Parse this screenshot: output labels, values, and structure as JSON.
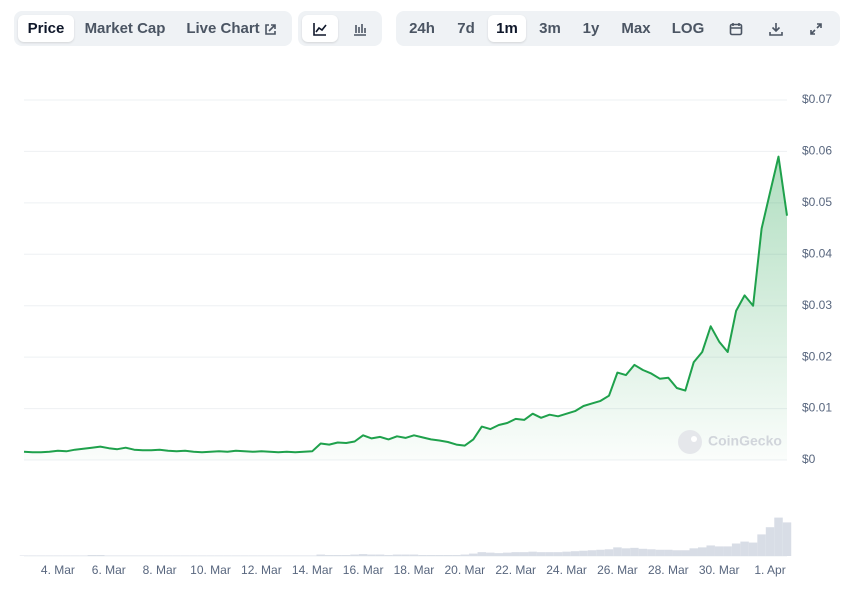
{
  "toolbar": {
    "views": [
      "Price",
      "Market Cap",
      "Live Chart"
    ],
    "ranges": [
      "24h",
      "7d",
      "1m",
      "3m",
      "1y",
      "Max",
      "LOG"
    ]
  },
  "watermark": "CoinGecko",
  "chart_data": {
    "type": "line",
    "categories": [
      null,
      null,
      null,
      null,
      "4. Mar",
      null,
      null,
      null,
      null,
      null,
      "6. Mar",
      null,
      null,
      null,
      null,
      null,
      "8. Mar",
      null,
      null,
      null,
      null,
      null,
      "10. Mar",
      null,
      null,
      null,
      null,
      null,
      "12. Mar",
      null,
      null,
      null,
      null,
      null,
      "14. Mar",
      null,
      null,
      null,
      null,
      null,
      "16. Mar",
      null,
      null,
      null,
      null,
      null,
      "18. Mar",
      null,
      null,
      null,
      null,
      null,
      "20. Mar",
      null,
      null,
      null,
      null,
      null,
      "22. Mar",
      null,
      null,
      null,
      null,
      null,
      "24. Mar",
      null,
      null,
      null,
      null,
      null,
      "26. Mar",
      null,
      null,
      null,
      null,
      null,
      "28. Mar",
      null,
      null,
      null,
      null,
      null,
      "30. Mar",
      null,
      null,
      null,
      null,
      null,
      "1. Apr",
      null,
      null
    ],
    "series": [
      {
        "color": "#1fa14c",
        "values": [
          0.0016,
          0.0015,
          0.0015,
          0.0016,
          0.0018,
          0.0017,
          0.002,
          0.0022,
          0.0024,
          0.0026,
          0.0023,
          0.0021,
          0.0024,
          0.002,
          0.0019,
          0.0019,
          0.002,
          0.0018,
          0.0017,
          0.0018,
          0.0016,
          0.0015,
          0.0016,
          0.0017,
          0.0016,
          0.0018,
          0.0017,
          0.0016,
          0.0017,
          0.0016,
          0.0015,
          0.0016,
          0.0015,
          0.0016,
          0.0017,
          0.0032,
          0.003,
          0.0034,
          0.0033,
          0.0036,
          0.0048,
          0.0042,
          0.0045,
          0.004,
          0.0046,
          0.0043,
          0.0048,
          0.0044,
          0.004,
          0.0038,
          0.0035,
          0.003,
          0.0028,
          0.004,
          0.0065,
          0.006,
          0.0068,
          0.0072,
          0.008,
          0.0078,
          0.009,
          0.0082,
          0.0088,
          0.0085,
          0.009,
          0.0095,
          0.0105,
          0.011,
          0.0115,
          0.0125,
          0.017,
          0.0165,
          0.0185,
          0.0175,
          0.0168,
          0.0158,
          0.016,
          0.014,
          0.0135,
          0.019,
          0.021,
          0.026,
          0.023,
          0.021,
          0.029,
          0.032,
          0.03,
          0.045,
          0.052,
          0.059,
          0.0475
        ]
      }
    ],
    "volume": {
      "color": "#d8dde6",
      "lim": [
        0,
        100
      ],
      "values": [
        1,
        1,
        1,
        1,
        1,
        1,
        1,
        1,
        2,
        2,
        1,
        1,
        1,
        1,
        1,
        1,
        1,
        1,
        1,
        1,
        1,
        1,
        1,
        1,
        1,
        1,
        1,
        1,
        1,
        1,
        1,
        1,
        1,
        1,
        1,
        3,
        2,
        2,
        2,
        3,
        4,
        3,
        3,
        2,
        3,
        3,
        3,
        2,
        2,
        2,
        2,
        2,
        3,
        5,
        8,
        7,
        6,
        7,
        8,
        8,
        9,
        8,
        8,
        8,
        9,
        10,
        11,
        12,
        13,
        14,
        18,
        16,
        17,
        15,
        14,
        13,
        13,
        12,
        12,
        16,
        18,
        22,
        20,
        20,
        26,
        30,
        28,
        45,
        60,
        80,
        70
      ]
    },
    "ylim": [
      0,
      0.07
    ],
    "yticks": [
      {
        "value": 0,
        "label": "$0"
      },
      {
        "value": 0.01,
        "label": "$0.01"
      },
      {
        "value": 0.02,
        "label": "$0.02"
      },
      {
        "value": 0.03,
        "label": "$0.03"
      },
      {
        "value": 0.04,
        "label": "$0.04"
      },
      {
        "value": 0.05,
        "label": "$0.05"
      },
      {
        "value": 0.06,
        "label": "$0.06"
      },
      {
        "value": 0.07,
        "label": "$0.07"
      }
    ],
    "grid": true
  }
}
